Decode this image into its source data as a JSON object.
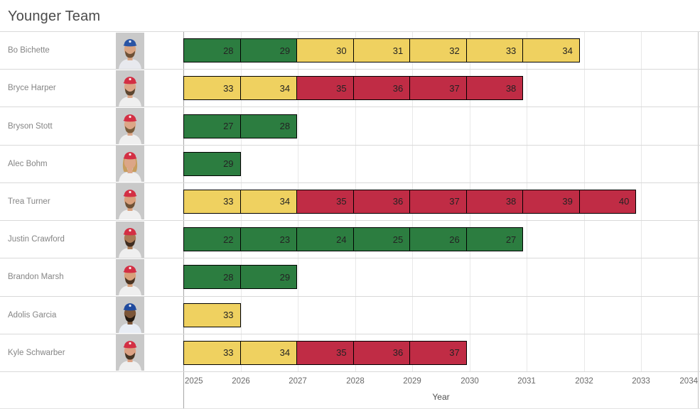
{
  "title": "Younger Team",
  "axis": {
    "label": "Year",
    "years": [
      "2025",
      "2026",
      "2027",
      "2028",
      "2029",
      "2030",
      "2031",
      "2032",
      "2033",
      "2034"
    ]
  },
  "palette": {
    "green": "#2c7d40",
    "yellow": "#efd160",
    "red": "#c02c45",
    "bar_border": "#000000"
  },
  "chart_data": {
    "type": "bar",
    "orientation": "horizontal",
    "title": "Younger Team",
    "xlabel": "Year",
    "xlim": [
      2025,
      2034
    ],
    "x_ticks": [
      2025,
      2026,
      2027,
      2028,
      2029,
      2030,
      2031,
      2032,
      2033,
      2034
    ],
    "grid": true,
    "legend": "none",
    "color_rule": {
      "green": "age <= 29",
      "yellow": "30 <= age <= 34",
      "red": "age >= 35"
    },
    "rows": [
      {
        "player": "Bo Bichette",
        "start_year": 2025,
        "end_year": 2032,
        "ages": [
          28,
          29,
          30,
          31,
          32,
          33,
          34
        ],
        "segment_colors": [
          "green",
          "green",
          "yellow",
          "yellow",
          "yellow",
          "yellow",
          "yellow"
        ],
        "avatar": {
          "cap": "#2a55a4",
          "skin": "#d9a583",
          "beard": "#6e5136",
          "hair": null,
          "jersey": "#e8e9ee"
        }
      },
      {
        "player": "Bryce Harper",
        "start_year": 2025,
        "end_year": 2031,
        "ages": [
          33,
          34,
          35,
          36,
          37,
          38
        ],
        "segment_colors": [
          "yellow",
          "yellow",
          "red",
          "red",
          "red",
          "red"
        ],
        "avatar": {
          "cap": "#d32f44",
          "skin": "#dca687",
          "beard": "#5d4630",
          "hair": null,
          "jersey": "#efefef"
        }
      },
      {
        "player": "Bryson Stott",
        "start_year": 2025,
        "end_year": 2027,
        "ages": [
          27,
          28
        ],
        "segment_colors": [
          "green",
          "green"
        ],
        "avatar": {
          "cap": "#d32f44",
          "skin": "#dca687",
          "beard": "#7a5c3b",
          "hair": null,
          "jersey": "#efefef"
        }
      },
      {
        "player": "Alec Bohm",
        "start_year": 2025,
        "end_year": 2026,
        "ages": [
          29
        ],
        "segment_colors": [
          "green"
        ],
        "avatar": {
          "cap": "#d32f44",
          "skin": "#dca687",
          "beard": null,
          "hair": "#c79d5d",
          "jersey": "#efefef"
        }
      },
      {
        "player": "Trea Turner",
        "start_year": 2025,
        "end_year": 2033,
        "ages": [
          33,
          34,
          35,
          36,
          37,
          38,
          39,
          40
        ],
        "segment_colors": [
          "yellow",
          "yellow",
          "red",
          "red",
          "red",
          "red",
          "red",
          "red"
        ],
        "avatar": {
          "cap": "#d32f44",
          "skin": "#d9a07c",
          "beard": "#6e5136",
          "hair": null,
          "jersey": "#efefef"
        }
      },
      {
        "player": "Justin Crawford",
        "start_year": 2025,
        "end_year": 2031,
        "ages": [
          22,
          23,
          24,
          25,
          26,
          27
        ],
        "segment_colors": [
          "green",
          "green",
          "green",
          "green",
          "green",
          "green"
        ],
        "avatar": {
          "cap": "#d32f44",
          "skin": "#a97a55",
          "beard": "#3e2c20",
          "hair": null,
          "jersey": "#efefef"
        }
      },
      {
        "player": "Brandon Marsh",
        "start_year": 2025,
        "end_year": 2027,
        "ages": [
          28,
          29
        ],
        "segment_colors": [
          "green",
          "green"
        ],
        "avatar": {
          "cap": "#d32f44",
          "skin": "#d8a07a",
          "beard": "#4a3423",
          "hair": null,
          "jersey": "#efefef"
        }
      },
      {
        "player": "Adolis Garcia",
        "start_year": 2025,
        "end_year": 2026,
        "ages": [
          33
        ],
        "segment_colors": [
          "yellow"
        ],
        "avatar": {
          "cap": "#1f4a9e",
          "skin": "#7c5639",
          "beard": "#241a12",
          "hair": null,
          "jersey": "#e8edf5"
        }
      },
      {
        "player": "Kyle Schwarber",
        "start_year": 2025,
        "end_year": 2030,
        "ages": [
          33,
          34,
          35,
          36,
          37
        ],
        "segment_colors": [
          "yellow",
          "yellow",
          "red",
          "red",
          "red"
        ],
        "avatar": {
          "cap": "#d32f44",
          "skin": "#dba184",
          "beard": "#463525",
          "hair": null,
          "jersey": "#efefef"
        }
      }
    ]
  }
}
